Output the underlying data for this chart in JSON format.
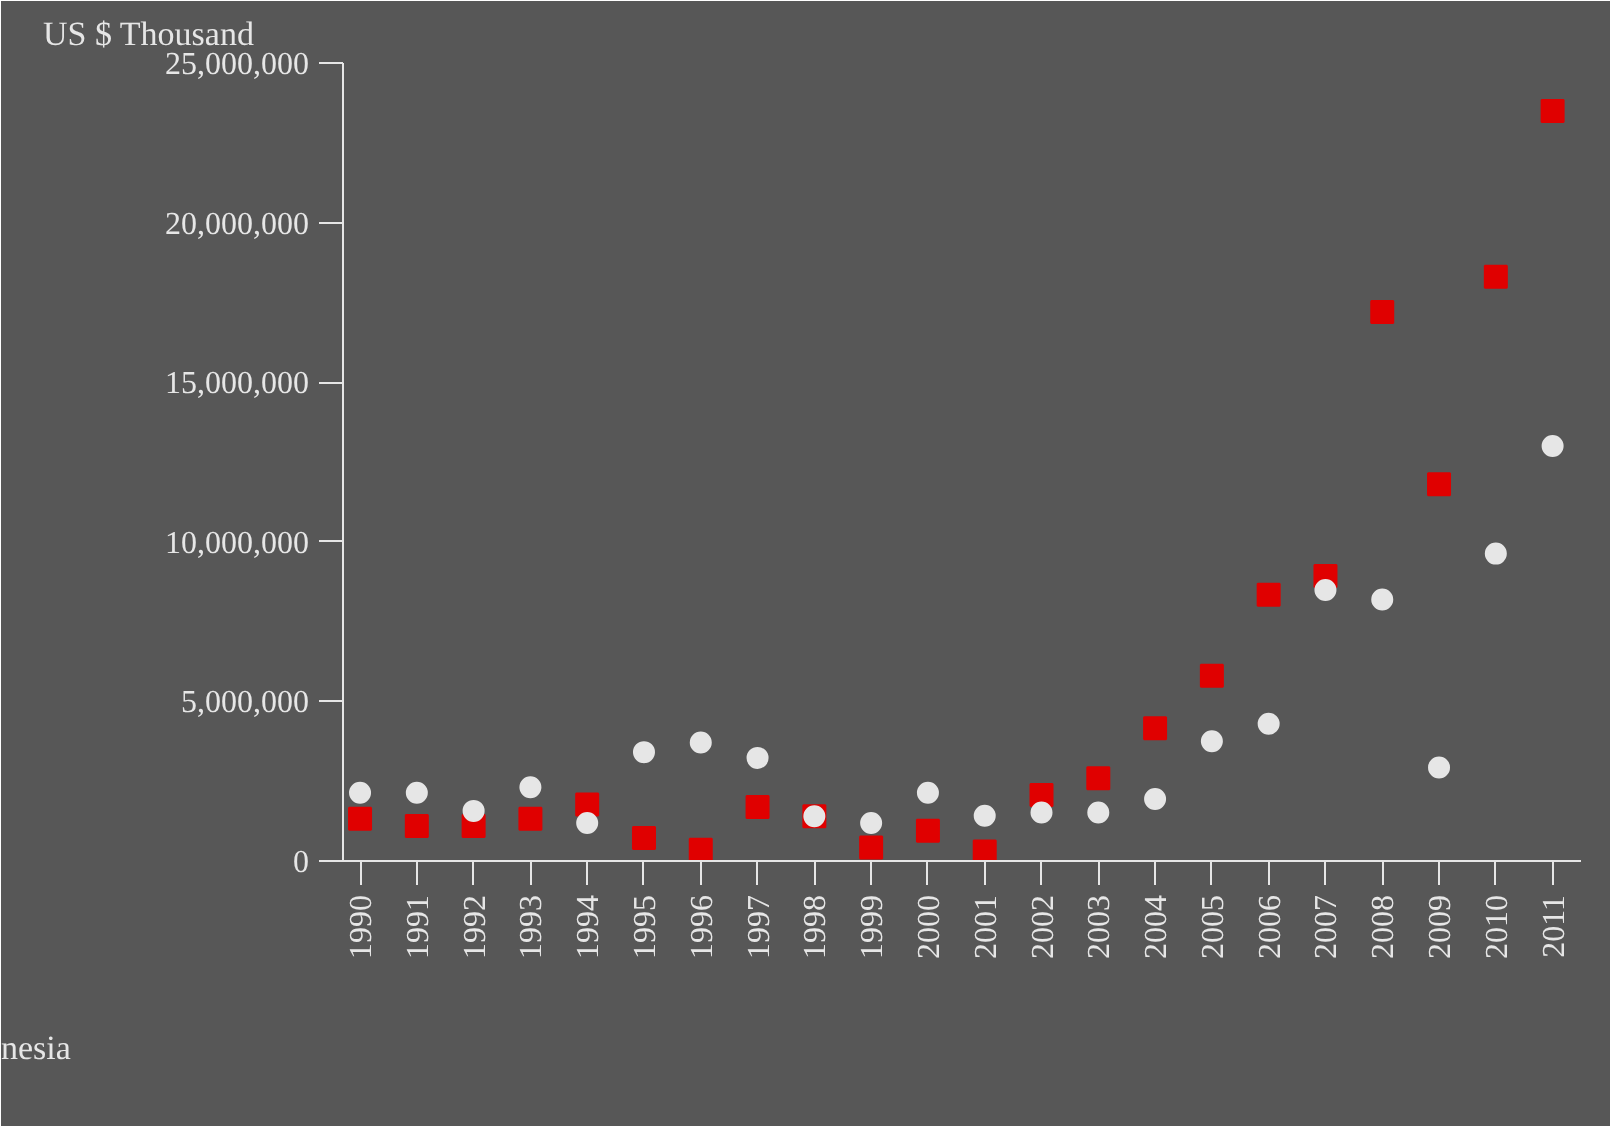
{
  "chart_data": {
    "type": "scatter",
    "ylabel": "US $ Thousand",
    "categories": [
      "1990",
      "1991",
      "1992",
      "1993",
      "1994",
      "1995",
      "1996",
      "1997",
      "1998",
      "1999",
      "2000",
      "2001",
      "2002",
      "2003",
      "2004",
      "2005",
      "2006",
      "2007",
      "2008",
      "2009",
      "2010",
      "2011"
    ],
    "series": [
      {
        "color": "#e6e6e6",
        "marker": "circle",
        "values": [
          2140000,
          2140000,
          1570000,
          2310000,
          1190000,
          3410000,
          3710000,
          3230000,
          1400000,
          1190000,
          2140000,
          1420000,
          1520000,
          1520000,
          1940000,
          3750000,
          4300000,
          8490000,
          8190000,
          2930000,
          9630000,
          13000000
        ]
      },
      {
        "color": "#e00000",
        "marker": "square",
        "values": [
          1320000,
          1100000,
          1100000,
          1320000,
          1770000,
          720000,
          350000,
          1690000,
          1400000,
          420000,
          950000,
          300000,
          2070000,
          2590000,
          4160000,
          5800000,
          8340000,
          8930000,
          17200000,
          11800000,
          18300000,
          23500000
        ]
      }
    ],
    "ylim": [
      0,
      25000000
    ],
    "yticks": [
      {
        "value": 0,
        "label": "0"
      },
      {
        "value": 5000000,
        "label": "5,000,000"
      },
      {
        "value": 10000000,
        "label": "10,000,000"
      },
      {
        "value": 15000000,
        "label": "15,000,000"
      },
      {
        "value": 20000000,
        "label": "20,000,000"
      },
      {
        "value": 25000000,
        "label": "25,000,000"
      }
    ],
    "grid": false,
    "annotations": [
      "nesia"
    ]
  }
}
